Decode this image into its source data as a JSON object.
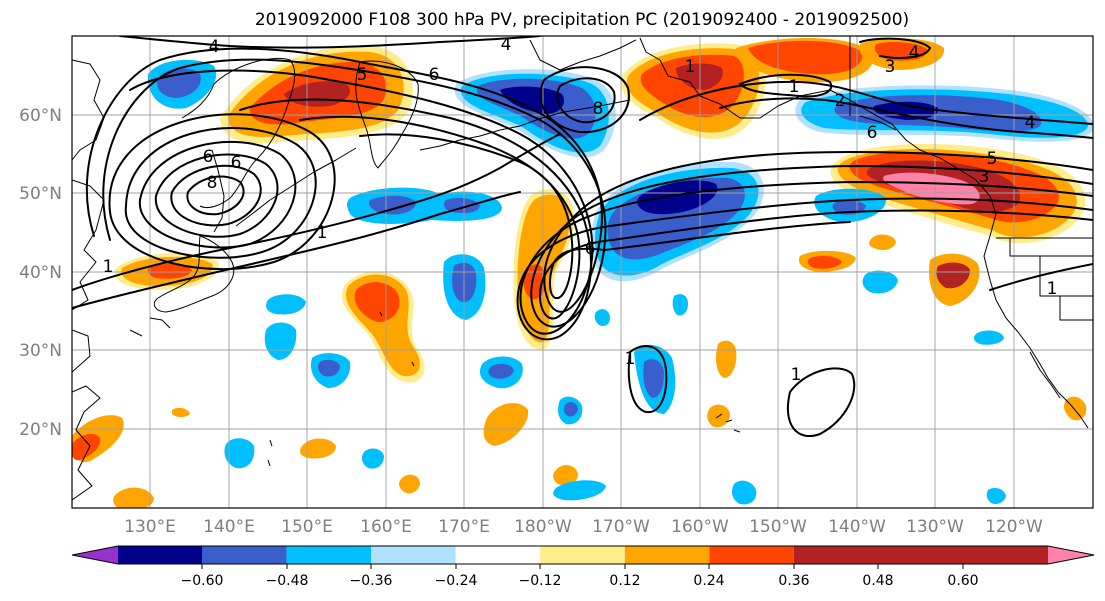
{
  "title": "2019092000 F108 300 hPa PV, precipitation PC (2019092400 - 2019092500)",
  "map": {
    "lat_ticks": [
      "60°N",
      "50°N",
      "40°N",
      "30°N",
      "20°N"
    ],
    "lon_ticks": [
      "130°E",
      "140°E",
      "150°E",
      "160°E",
      "170°E",
      "180°W",
      "170°W",
      "160°W",
      "150°W",
      "140°W",
      "130°W",
      "120°W"
    ],
    "contour_labels": [
      "4",
      "4",
      "5",
      "6",
      "8",
      "1",
      "8",
      "6",
      "1",
      "6",
      "1",
      "2",
      "4",
      "4",
      "5",
      "3",
      "6",
      "6",
      "3",
      "1",
      "1",
      "1",
      "1"
    ],
    "region": "North Pacific"
  },
  "colorbar": {
    "ticks": [
      "−0.60",
      "−0.48",
      "−0.36",
      "−0.24",
      "−0.12",
      "0.12",
      "0.24",
      "0.36",
      "0.48",
      "0.60"
    ],
    "colors": [
      "#9932cc",
      "#00008b",
      "#3a5fcd",
      "#00bfff",
      "#b0e2ff",
      "#ffffff",
      "#ffec8b",
      "#ffa500",
      "#ff4500",
      "#b22222",
      "#ff82ab"
    ]
  }
}
